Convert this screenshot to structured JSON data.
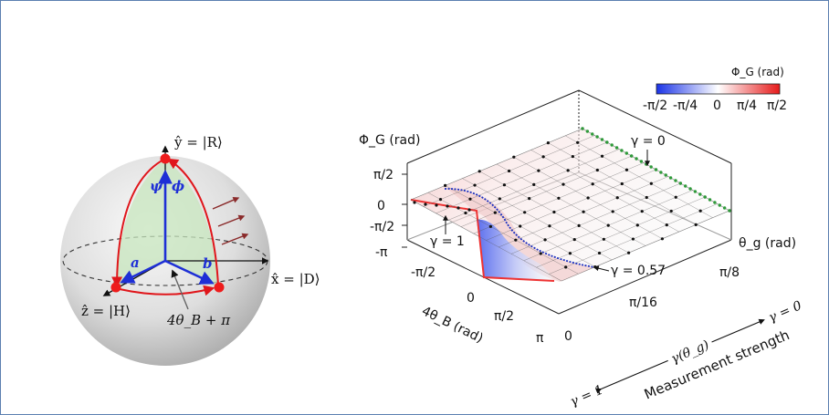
{
  "bloch": {
    "y_axis_label": "ŷ = |R⟩",
    "x_axis_label": "x̂ = |D⟩",
    "z_axis_label": "ẑ = |H⟩",
    "psi_label": "ψ",
    "phi_label": "ϕ",
    "a_label": "a",
    "b_label": "b",
    "angle_label": "4θ_B + π"
  },
  "surface": {
    "z_axis_label": "Φ_G (rad)",
    "z_ticks": [
      "π/2",
      "0",
      "-π/2",
      "-π"
    ],
    "x_axis_label": "4θ_B (rad)",
    "x_ticks": [
      "-π/2",
      "0",
      "π/2",
      "π"
    ],
    "y_axis_label": "θ_g (rad)",
    "y_ticks": [
      "0",
      "π/16",
      "π/8"
    ],
    "annotations": {
      "gamma_0": "γ = 0",
      "gamma_1": "γ = 1",
      "gamma_057": "γ = 0.57",
      "gamma_theta": "γ(θ_g)",
      "arrow_gamma_1": "γ = 1",
      "arrow_gamma_0": "γ = 0",
      "strength": "Measurement strength"
    },
    "colorbar": {
      "title": "Φ_G (rad)",
      "ticks": [
        "-π/2",
        "-π/4",
        "0",
        "π/4",
        "π/2"
      ],
      "low_color": "#1a33e6",
      "mid_color": "#ffffff",
      "high_color": "#e61a1a"
    }
  }
}
